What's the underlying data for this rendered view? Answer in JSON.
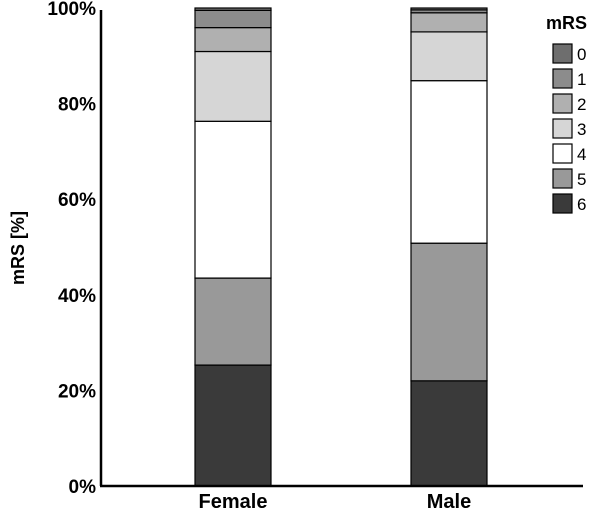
{
  "chart_data": {
    "type": "bar",
    "stacked": true,
    "ylabel": "mRS [%]",
    "ylim": [
      0,
      100
    ],
    "yticks": [
      "0%",
      "20%",
      "40%",
      "60%",
      "80%",
      "100%"
    ],
    "categories": [
      "Female",
      "Male"
    ],
    "legend_title": "mRS",
    "legend_position": "right",
    "series": [
      {
        "name": "6",
        "color": "#3a3a3a",
        "values": [
          25.3,
          22.0
        ]
      },
      {
        "name": "5",
        "color": "#999999",
        "values": [
          18.2,
          28.8
        ]
      },
      {
        "name": "4",
        "color": "#ffffff",
        "values": [
          32.8,
          34.0
        ]
      },
      {
        "name": "3",
        "color": "#d6d6d6",
        "values": [
          14.6,
          10.2
        ]
      },
      {
        "name": "2",
        "color": "#b0b0b0",
        "values": [
          5.0,
          4.0
        ]
      },
      {
        "name": "1",
        "color": "#8c8c8c",
        "values": [
          3.6,
          0.6
        ]
      },
      {
        "name": "0",
        "color": "#6e6e6e",
        "values": [
          0.5,
          0.4
        ]
      }
    ],
    "legend_order": [
      "0",
      "1",
      "2",
      "3",
      "4",
      "5",
      "6"
    ]
  }
}
